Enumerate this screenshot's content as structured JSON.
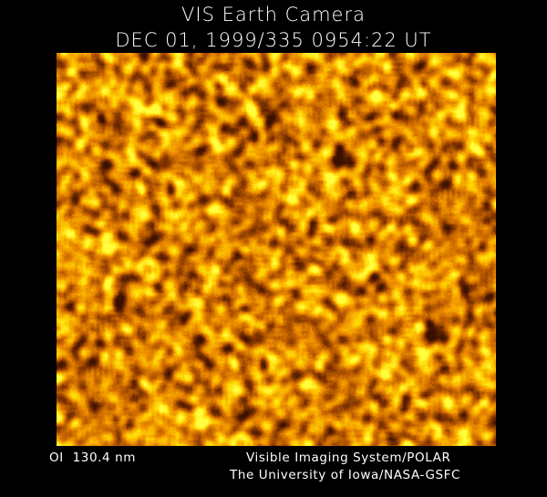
{
  "header": {
    "title": "VIS Earth Camera",
    "timestamp": "DEC 01, 1999/335 0954:22 UT"
  },
  "image": {
    "description_colormap": [
      "#3a1000",
      "#7a3000",
      "#c06000",
      "#f09000",
      "#ffd000",
      "#ffff40"
    ]
  },
  "footer": {
    "wavelength": "OI  130.4 nm",
    "instrument": "Visible Imaging System/POLAR",
    "credit": "The University of Iowa/NASA-GSFC"
  }
}
